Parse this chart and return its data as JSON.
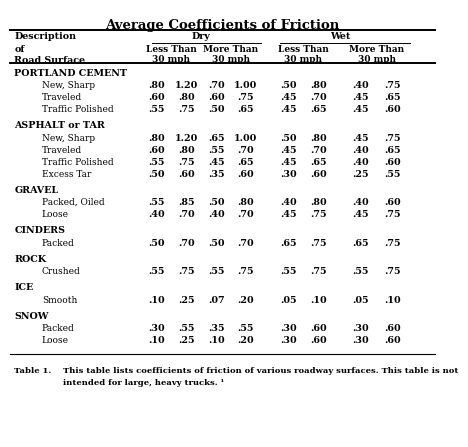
{
  "title": "Average Coefficients of Friction",
  "bg_color": "#ffffff",
  "sections": [
    {
      "category": "PORTLAND CEMENT",
      "rows": [
        [
          "New, Sharp",
          ".80",
          "1.20",
          ".70",
          "1.00",
          ".50",
          ".80",
          ".40",
          ".75"
        ],
        [
          "Traveled",
          ".60",
          ".80",
          ".60",
          ".75",
          ".45",
          ".70",
          ".45",
          ".65"
        ],
        [
          "Traffic Polished",
          ".55",
          ".75",
          ".50",
          ".65",
          ".45",
          ".65",
          ".45",
          ".60"
        ]
      ]
    },
    {
      "category": "ASPHALT or TAR",
      "rows": [
        [
          "New, Sharp",
          ".80",
          "1.20",
          ".65",
          "1.00",
          ".50",
          ".80",
          ".45",
          ".75"
        ],
        [
          "Traveled",
          ".60",
          ".80",
          ".55",
          ".70",
          ".45",
          ".70",
          ".40",
          ".65"
        ],
        [
          "Traffic Polished",
          ".55",
          ".75",
          ".45",
          ".65",
          ".45",
          ".65",
          ".40",
          ".60"
        ],
        [
          "Excess Tar",
          ".50",
          ".60",
          ".35",
          ".60",
          ".30",
          ".60",
          ".25",
          ".55"
        ]
      ]
    },
    {
      "category": "GRAVEL",
      "rows": [
        [
          "Packed, Oiled",
          ".55",
          ".85",
          ".50",
          ".80",
          ".40",
          ".80",
          ".40",
          ".60"
        ],
        [
          "Loose",
          ".40",
          ".70",
          ".40",
          ".70",
          ".45",
          ".75",
          ".45",
          ".75"
        ]
      ]
    },
    {
      "category": "CINDERS",
      "rows": [
        [
          "Packed",
          ".50",
          ".70",
          ".50",
          ".70",
          ".65",
          ".75",
          ".65",
          ".75"
        ]
      ]
    },
    {
      "category": "ROCK",
      "rows": [
        [
          "Crushed",
          ".55",
          ".75",
          ".55",
          ".75",
          ".55",
          ".75",
          ".55",
          ".75"
        ]
      ]
    },
    {
      "category": "ICE",
      "rows": [
        [
          "Smooth",
          ".10",
          ".25",
          ".07",
          ".20",
          ".05",
          ".10",
          ".05",
          ".10"
        ]
      ]
    },
    {
      "category": "SNOW",
      "rows": [
        [
          "Packed",
          ".30",
          ".55",
          ".35",
          ".55",
          ".30",
          ".60",
          ".30",
          ".60"
        ],
        [
          "Loose",
          ".10",
          ".25",
          ".10",
          ".20",
          ".30",
          ".60",
          ".30",
          ".60"
        ]
      ]
    }
  ],
  "footnote_label": "Table 1.",
  "footnote_text": "This table lists coefficients of friction of various roadway surfaces. This table is not\nintended for large, heavy trucks. ¹"
}
